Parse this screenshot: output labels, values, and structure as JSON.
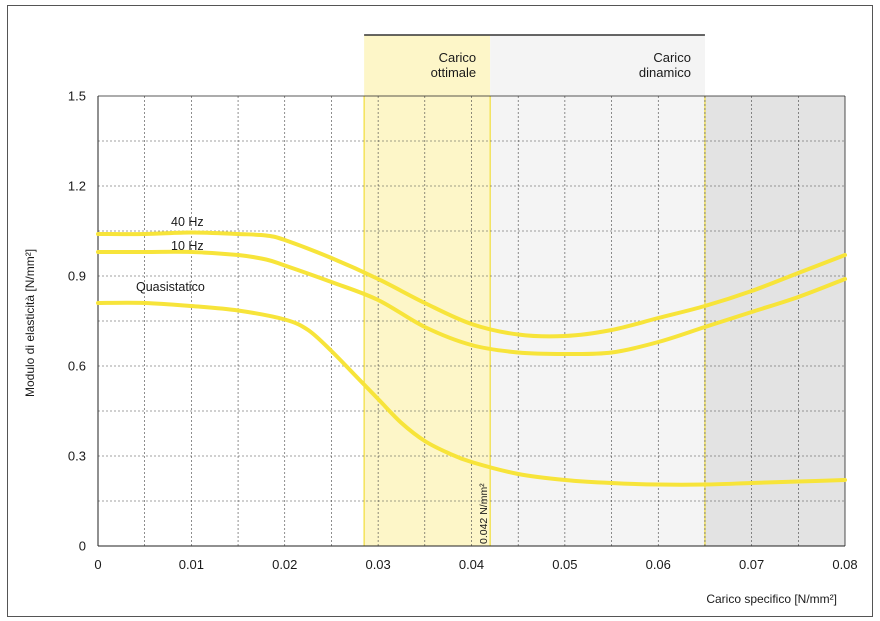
{
  "chart_data": {
    "type": "line",
    "xlabel": "Carico specifico [N/mm²]",
    "ylabel": "Modulo di elasticità [N/mm²]",
    "xlim": [
      0,
      0.08
    ],
    "ylim": [
      0,
      1.5
    ],
    "x_ticks": [
      "0",
      "0.01",
      "0.02",
      "0.03",
      "0.04",
      "0.05",
      "0.06",
      "0.07",
      "0.08"
    ],
    "y_ticks": [
      "0",
      "0.3",
      "0.6",
      "0.9",
      "1.2",
      "1.5"
    ],
    "grid": true,
    "regions": [
      {
        "label": "Carico ottimale",
        "x_start": 0.0285,
        "x_end": 0.042,
        "color": "#fdf6c8"
      },
      {
        "label": "Carico dinamico",
        "x_start": 0.042,
        "x_end": 0.065,
        "color": "#f4f4f4"
      },
      {
        "label": "",
        "x_start": 0.065,
        "x_end": 0.08,
        "color": "#e3e3e3"
      }
    ],
    "annotation": "0.042 N/mm²",
    "line_color": "#f7e43a",
    "series": [
      {
        "name": "40 Hz",
        "x": [
          0,
          0.005,
          0.01,
          0.015,
          0.018,
          0.02,
          0.025,
          0.03,
          0.035,
          0.04,
          0.045,
          0.05,
          0.055,
          0.06,
          0.065,
          0.07,
          0.075,
          0.08
        ],
        "y": [
          1.04,
          1.04,
          1.045,
          1.04,
          1.035,
          1.02,
          0.96,
          0.89,
          0.81,
          0.74,
          0.705,
          0.7,
          0.72,
          0.76,
          0.8,
          0.85,
          0.91,
          0.97
        ]
      },
      {
        "name": "10 Hz",
        "x": [
          0,
          0.005,
          0.01,
          0.015,
          0.018,
          0.02,
          0.025,
          0.03,
          0.035,
          0.04,
          0.045,
          0.05,
          0.055,
          0.06,
          0.065,
          0.07,
          0.075,
          0.08
        ],
        "y": [
          0.98,
          0.98,
          0.98,
          0.97,
          0.955,
          0.935,
          0.88,
          0.82,
          0.73,
          0.67,
          0.645,
          0.64,
          0.645,
          0.68,
          0.73,
          0.78,
          0.83,
          0.89
        ]
      },
      {
        "name": "Quasistatico",
        "x": [
          0,
          0.005,
          0.01,
          0.015,
          0.02,
          0.0225,
          0.025,
          0.0275,
          0.03,
          0.0325,
          0.035,
          0.0375,
          0.04,
          0.045,
          0.05,
          0.055,
          0.06,
          0.065,
          0.07,
          0.075,
          0.08
        ],
        "y": [
          0.81,
          0.81,
          0.8,
          0.785,
          0.755,
          0.72,
          0.65,
          0.57,
          0.49,
          0.41,
          0.35,
          0.31,
          0.28,
          0.24,
          0.22,
          0.21,
          0.205,
          0.205,
          0.21,
          0.215,
          0.22
        ]
      }
    ]
  }
}
